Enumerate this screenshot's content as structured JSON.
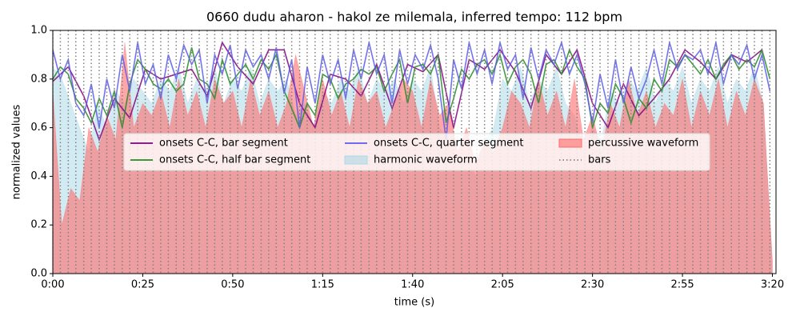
{
  "chart_data": {
    "type": "line",
    "title": "0660 dudu aharon - hakol ze milemala, inferred tempo: 112 bpm",
    "xlabel": "time (s)",
    "ylabel": "normalized values",
    "xlim": [
      0,
      201
    ],
    "ylim": [
      0,
      1
    ],
    "xticks": [
      {
        "value": 0,
        "label": "0:00"
      },
      {
        "value": 25,
        "label": "0:25"
      },
      {
        "value": 50,
        "label": "0:50"
      },
      {
        "value": 75,
        "label": "1:15"
      },
      {
        "value": 100,
        "label": "1:40"
      },
      {
        "value": 125,
        "label": "2:05"
      },
      {
        "value": 150,
        "label": "2:30"
      },
      {
        "value": 175,
        "label": "2:55"
      },
      {
        "value": 200,
        "label": "3:20"
      }
    ],
    "yticks": [
      {
        "value": 0,
        "label": "0.0"
      },
      0.2,
      0.4,
      0.6,
      0.8,
      {
        "value": 1,
        "label": "1.0"
      }
    ],
    "legend": "center",
    "series": [
      {
        "name": "onsets C-C, bar segment",
        "kind": "line",
        "color": "#800080",
        "x": [
          0,
          4.3,
          8.6,
          12.9,
          17.1,
          21.4,
          25.7,
          30,
          34.3,
          38.6,
          42.9,
          47.1,
          51.4,
          55.7,
          60,
          64.3,
          68.6,
          72.9,
          77.1,
          81.4,
          85.7,
          90,
          94.3,
          98.6,
          102.9,
          107.1,
          111.4,
          115.7,
          120,
          124.3,
          128.6,
          132.9,
          137.1,
          141.4,
          145.7,
          150,
          154.3,
          158.6,
          162.9,
          167.1,
          171.4,
          175.7,
          180,
          184.3,
          188.6,
          192.9,
          197.1
        ],
        "values": [
          0.79,
          0.85,
          0.73,
          0.55,
          0.72,
          0.64,
          0.84,
          0.8,
          0.82,
          0.84,
          0.73,
          0.95,
          0.85,
          0.78,
          0.92,
          0.92,
          0.7,
          0.6,
          0.82,
          0.8,
          0.73,
          0.86,
          0.68,
          0.86,
          0.83,
          0.9,
          0.6,
          0.88,
          0.84,
          0.92,
          0.83,
          0.68,
          0.9,
          0.82,
          0.92,
          0.7,
          0.6,
          0.78,
          0.65,
          0.72,
          0.8,
          0.92,
          0.87,
          0.8,
          0.9,
          0.87,
          0.92
        ]
      },
      {
        "name": "onsets C-C, half bar segment",
        "kind": "line",
        "color": "#228b22",
        "x": [
          0,
          2.1,
          4.3,
          6.4,
          8.6,
          10.7,
          12.9,
          15,
          17.1,
          19.3,
          21.4,
          23.6,
          25.7,
          27.9,
          30,
          32.1,
          34.3,
          36.4,
          38.6,
          40.7,
          42.9,
          45,
          47.1,
          49.3,
          51.4,
          53.6,
          55.7,
          57.9,
          60,
          62.1,
          64.3,
          66.4,
          68.6,
          70.7,
          72.9,
          75,
          77.1,
          79.3,
          81.4,
          83.6,
          85.7,
          87.9,
          90,
          92.1,
          94.3,
          96.4,
          98.6,
          100.7,
          102.9,
          105,
          107.1,
          109.3,
          111.4,
          113.6,
          115.7,
          117.9,
          120,
          122.1,
          124.3,
          126.4,
          128.6,
          130.7,
          132.9,
          135,
          137.1,
          139.3,
          141.4,
          143.6,
          145.7,
          147.9,
          150,
          152.1,
          154.3,
          156.4,
          158.6,
          160.7,
          162.9,
          165,
          167.1,
          169.3,
          171.4,
          173.6,
          175.7,
          177.9,
          180,
          182.1,
          184.3,
          186.4,
          188.6,
          190.7,
          192.9,
          195,
          197.1,
          199.3
        ],
        "values": [
          0.8,
          0.85,
          0.82,
          0.72,
          0.68,
          0.62,
          0.72,
          0.65,
          0.75,
          0.6,
          0.78,
          0.88,
          0.84,
          0.78,
          0.76,
          0.8,
          0.75,
          0.78,
          0.93,
          0.8,
          0.78,
          0.72,
          0.88,
          0.78,
          0.82,
          0.86,
          0.8,
          0.88,
          0.84,
          0.9,
          0.75,
          0.68,
          0.6,
          0.7,
          0.65,
          0.82,
          0.8,
          0.72,
          0.78,
          0.8,
          0.84,
          0.82,
          0.85,
          0.75,
          0.82,
          0.88,
          0.7,
          0.85,
          0.86,
          0.82,
          0.9,
          0.62,
          0.72,
          0.84,
          0.8,
          0.86,
          0.88,
          0.82,
          0.9,
          0.78,
          0.85,
          0.88,
          0.82,
          0.7,
          0.86,
          0.88,
          0.82,
          0.92,
          0.85,
          0.8,
          0.6,
          0.7,
          0.66,
          0.78,
          0.72,
          0.62,
          0.72,
          0.68,
          0.8,
          0.75,
          0.88,
          0.85,
          0.9,
          0.86,
          0.82,
          0.88,
          0.8,
          0.86,
          0.9,
          0.84,
          0.88,
          0.85,
          0.92,
          0.8
        ]
      },
      {
        "name": "onsets C-C, quarter segment",
        "kind": "line",
        "color": "#5a5aee",
        "x": [
          0,
          2.1,
          4.3,
          6.4,
          8.6,
          10.7,
          12.9,
          15,
          17.1,
          19.3,
          21.4,
          23.6,
          25.7,
          27.9,
          30,
          32.1,
          34.3,
          36.4,
          38.6,
          40.7,
          42.9,
          45,
          47.1,
          49.3,
          51.4,
          53.6,
          55.7,
          57.9,
          60,
          62.1,
          64.3,
          66.4,
          68.6,
          70.7,
          72.9,
          75,
          77.1,
          79.3,
          81.4,
          83.6,
          85.7,
          87.9,
          90,
          92.1,
          94.3,
          96.4,
          98.6,
          100.7,
          102.9,
          105,
          107.1,
          109.3,
          111.4,
          113.6,
          115.7,
          117.9,
          120,
          122.1,
          124.3,
          126.4,
          128.6,
          130.7,
          132.9,
          135,
          137.1,
          139.3,
          141.4,
          143.6,
          145.7,
          147.9,
          150,
          152.1,
          154.3,
          156.4,
          158.6,
          160.7,
          162.9,
          165,
          167.1,
          169.3,
          171.4,
          173.6,
          175.7,
          177.9,
          180,
          182.1,
          184.3,
          186.4,
          188.6,
          190.7,
          192.9,
          195,
          197.1,
          199.3
        ],
        "values": [
          0.92,
          0.8,
          0.88,
          0.7,
          0.65,
          0.78,
          0.6,
          0.8,
          0.68,
          0.9,
          0.75,
          0.95,
          0.78,
          0.86,
          0.72,
          0.9,
          0.8,
          0.94,
          0.86,
          0.92,
          0.7,
          0.9,
          0.82,
          0.94,
          0.76,
          0.92,
          0.85,
          0.9,
          0.8,
          0.93,
          0.74,
          0.88,
          0.6,
          0.85,
          0.7,
          0.9,
          0.78,
          0.88,
          0.72,
          0.92,
          0.8,
          0.95,
          0.82,
          0.9,
          0.7,
          0.92,
          0.78,
          0.9,
          0.84,
          0.94,
          0.8,
          0.55,
          0.88,
          0.76,
          0.95,
          0.82,
          0.92,
          0.78,
          0.95,
          0.84,
          0.9,
          0.72,
          0.93,
          0.8,
          0.92,
          0.86,
          0.95,
          0.82,
          0.9,
          0.78,
          0.62,
          0.82,
          0.68,
          0.88,
          0.7,
          0.85,
          0.72,
          0.8,
          0.92,
          0.78,
          0.95,
          0.84,
          0.9,
          0.88,
          0.92,
          0.82,
          0.95,
          0.78,
          0.9,
          0.86,
          0.94,
          0.8,
          0.9,
          0.75
        ]
      },
      {
        "name": "harmonic waveform",
        "kind": "area",
        "color": "#add8e6",
        "x": [
          0,
          2.5,
          5,
          7.5,
          10,
          12.5,
          15,
          17.5,
          20,
          22.5,
          25,
          27.5,
          30,
          32.5,
          35,
          37.5,
          40,
          42.5,
          45,
          47.5,
          50,
          52.5,
          55,
          57.5,
          60,
          62.5,
          65,
          67.5,
          70,
          72.5,
          75,
          77.5,
          80,
          82.5,
          85,
          87.5,
          90,
          92.5,
          95,
          97.5,
          100,
          102.5,
          105,
          107.5,
          110,
          112.5,
          115,
          117.5,
          120,
          122.5,
          125,
          127.5,
          130,
          132.5,
          135,
          137.5,
          140,
          142.5,
          145,
          147.5,
          150,
          152.5,
          155,
          157.5,
          160,
          162.5,
          165,
          167.5,
          170,
          172.5,
          175,
          177.5,
          180,
          182.5,
          185,
          187.5,
          190,
          192.5,
          195,
          197.5,
          200
        ],
        "values": [
          0.85,
          0.8,
          0.7,
          0.6,
          0.5,
          0.7,
          0.6,
          0.75,
          0.7,
          0.8,
          0.75,
          0.7,
          0.8,
          0.75,
          0.85,
          0.7,
          0.8,
          0.75,
          0.85,
          0.7,
          0.8,
          0.75,
          0.85,
          0.7,
          0.8,
          0.75,
          0.8,
          0.65,
          0.7,
          0.6,
          0.75,
          0.7,
          0.8,
          0.75,
          0.85,
          0.7,
          0.8,
          0.75,
          0.8,
          0.7,
          0.8,
          0.75,
          0.85,
          0.6,
          0.55,
          0.45,
          0.5,
          0.4,
          0.55,
          0.6,
          0.8,
          0.75,
          0.85,
          0.7,
          0.8,
          0.75,
          0.85,
          0.7,
          0.65,
          0.5,
          0.6,
          0.55,
          0.75,
          0.7,
          0.8,
          0.75,
          0.85,
          0.7,
          0.8,
          0.75,
          0.85,
          0.7,
          0.8,
          0.75,
          0.85,
          0.7,
          0.8,
          0.75,
          0.85,
          0.7,
          0.05
        ]
      },
      {
        "name": "percussive waveform",
        "kind": "area",
        "color": "#ff6b6b",
        "x": [
          0,
          2.5,
          5,
          7.5,
          10,
          12.5,
          15,
          17.5,
          20,
          22.5,
          25,
          27.5,
          30,
          32.5,
          35,
          37.5,
          40,
          42.5,
          45,
          47.5,
          50,
          52.5,
          55,
          57.5,
          60,
          62.5,
          65,
          67.5,
          70,
          72.5,
          75,
          77.5,
          80,
          82.5,
          85,
          87.5,
          90,
          92.5,
          95,
          97.5,
          100,
          102.5,
          105,
          107.5,
          110,
          112.5,
          115,
          117.5,
          120,
          122.5,
          125,
          127.5,
          130,
          132.5,
          135,
          137.5,
          140,
          142.5,
          145,
          147.5,
          150,
          152.5,
          155,
          157.5,
          160,
          162.5,
          165,
          167.5,
          170,
          172.5,
          175,
          177.5,
          180,
          182.5,
          185,
          187.5,
          190,
          192.5,
          195,
          197.5,
          200
        ],
        "values": [
          0.75,
          0.2,
          0.35,
          0.3,
          0.6,
          0.5,
          0.65,
          0.55,
          0.95,
          0.6,
          0.7,
          0.65,
          0.75,
          0.6,
          0.8,
          0.65,
          0.75,
          0.6,
          0.8,
          0.7,
          0.75,
          0.6,
          0.8,
          0.65,
          0.75,
          0.6,
          0.7,
          0.9,
          0.75,
          0.6,
          0.8,
          0.65,
          0.75,
          0.6,
          0.8,
          0.7,
          0.75,
          0.6,
          0.7,
          0.8,
          0.75,
          0.6,
          0.8,
          0.65,
          0.7,
          0.5,
          0.6,
          0.45,
          0.55,
          0.5,
          0.6,
          0.75,
          0.7,
          0.6,
          0.8,
          0.65,
          0.75,
          0.6,
          0.8,
          0.55,
          0.65,
          0.5,
          0.7,
          0.6,
          0.8,
          0.65,
          0.75,
          0.6,
          0.7,
          0.65,
          0.8,
          0.6,
          0.75,
          0.65,
          0.8,
          0.6,
          0.75,
          0.65,
          0.8,
          0.7,
          0.05
        ]
      },
      {
        "name": "bars",
        "kind": "vlines",
        "color": "#808080",
        "x": [
          0,
          2.1,
          4.3,
          6.4,
          8.6,
          10.7,
          12.9,
          15,
          17.1,
          19.3,
          21.4,
          23.6,
          25.7,
          27.9,
          30,
          32.1,
          34.3,
          36.4,
          38.6,
          40.7,
          42.9,
          45,
          47.1,
          49.3,
          51.4,
          53.6,
          55.7,
          57.9,
          60,
          62.1,
          64.3,
          66.4,
          68.6,
          70.7,
          72.9,
          75,
          77.1,
          79.3,
          81.4,
          83.6,
          85.7,
          87.9,
          90,
          92.1,
          94.3,
          96.4,
          98.6,
          100.7,
          102.9,
          105,
          107.1,
          109.3,
          111.4,
          113.6,
          115.7,
          117.9,
          120,
          122.1,
          124.3,
          126.4,
          128.6,
          130.7,
          132.9,
          135,
          137.1,
          139.3,
          141.4,
          143.6,
          145.7,
          147.9,
          150,
          152.1,
          154.3,
          156.4,
          158.6,
          160.7,
          162.9,
          165,
          167.1,
          169.3,
          171.4,
          173.6,
          175.7,
          177.9,
          180,
          182.1,
          184.3,
          186.4,
          188.6,
          190.7,
          192.9,
          195,
          197.1,
          199.3
        ]
      }
    ]
  }
}
